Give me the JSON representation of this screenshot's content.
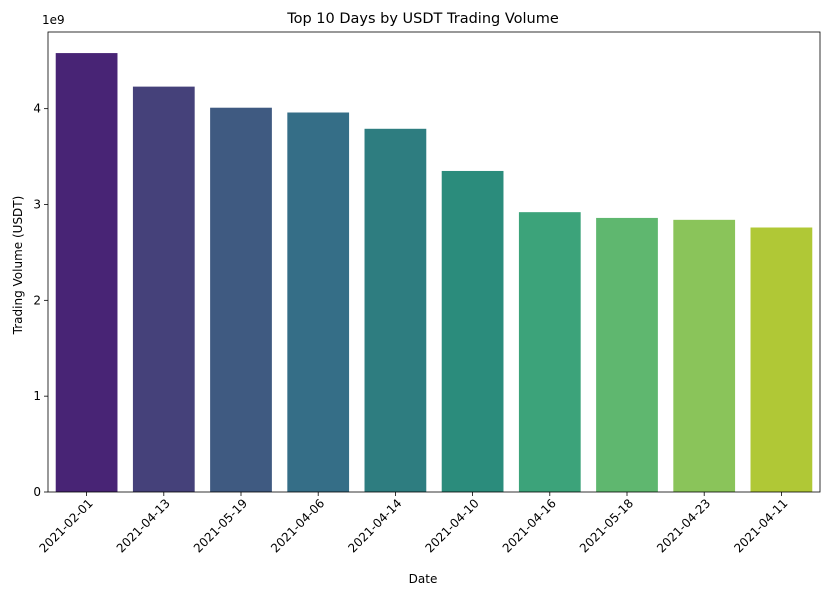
{
  "chart_data": {
    "type": "bar",
    "title": "Top 10 Days by USDT Trading Volume",
    "xlabel": "Date",
    "ylabel": "Trading Volume (USDT)",
    "offset_label": "1e9",
    "y_scale_factor": 1000000000,
    "categories": [
      "2021-02-01",
      "2021-04-13",
      "2021-05-19",
      "2021-04-06",
      "2021-04-14",
      "2021-04-10",
      "2021-04-16",
      "2021-05-18",
      "2021-04-23",
      "2021-04-11"
    ],
    "values": [
      4.58,
      4.23,
      4.01,
      3.96,
      3.79,
      3.35,
      2.92,
      2.86,
      2.84,
      2.76
    ],
    "colors": [
      "#482475",
      "#45417a",
      "#3f5a81",
      "#356e87",
      "#2e7d80",
      "#2b8c7c",
      "#3ca37a",
      "#5fb76f",
      "#8ac45a",
      "#b0c836"
    ],
    "ylim": [
      0,
      4.8
    ],
    "yticks": [
      0,
      1,
      2,
      3,
      4
    ],
    "ytick_labels": [
      "0",
      "1",
      "2",
      "3",
      "4"
    ],
    "grid": false,
    "legend": "none"
  }
}
